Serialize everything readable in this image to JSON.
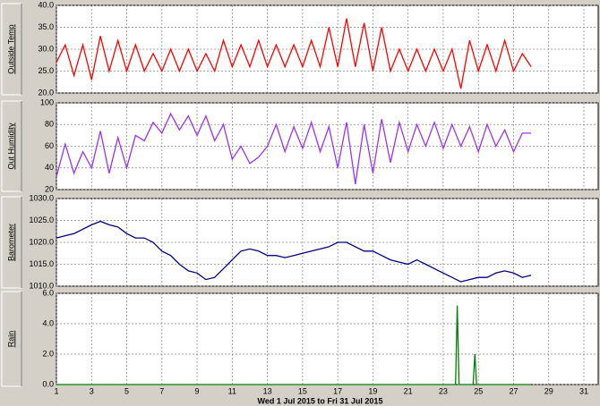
{
  "chart_data": [
    {
      "type": "line",
      "ylabel": "Outside Temp",
      "xlim": [
        1,
        31
      ],
      "xticks": [
        1,
        3,
        5,
        7,
        9,
        11,
        13,
        15,
        17,
        19,
        21,
        23,
        25,
        27,
        29,
        31
      ],
      "ylim": [
        20,
        40
      ],
      "yticks": [
        {
          "value": 20,
          "label": "20.0"
        },
        {
          "value": 25,
          "label": "25.0"
        },
        {
          "value": 30,
          "label": "30.0"
        },
        {
          "value": 35,
          "label": "35.0"
        },
        {
          "value": 40,
          "label": "40.0"
        }
      ],
      "grid": true,
      "x": [
        1,
        1.5,
        2,
        2.5,
        3,
        3.5,
        4,
        4.5,
        5,
        5.5,
        6,
        6.5,
        7,
        7.5,
        8,
        8.5,
        9,
        9.5,
        10,
        10.5,
        11,
        11.5,
        12,
        12.5,
        13,
        13.5,
        14,
        14.5,
        15,
        15.5,
        16,
        16.5,
        17,
        17.5,
        18,
        18.5,
        19,
        19.5,
        20,
        20.5,
        21,
        21.5,
        22,
        22.5,
        23,
        23.5,
        24,
        24.5,
        25,
        25.5,
        26,
        26.5,
        27,
        27.5,
        28
      ],
      "series": [
        {
          "color": "#ff0000",
          "values": [
            27,
            31,
            24,
            31,
            23,
            33,
            25,
            32,
            25,
            31,
            25,
            29,
            25,
            30,
            25,
            30,
            25,
            29,
            25,
            32,
            26,
            31,
            26,
            32,
            26,
            31,
            26,
            31,
            26,
            32,
            26,
            35,
            26,
            37,
            26,
            36,
            25,
            35,
            25,
            30,
            25,
            30,
            25,
            30,
            25,
            30,
            21,
            32,
            25,
            31,
            25,
            32,
            25,
            29,
            26
          ]
        }
      ]
    },
    {
      "type": "line",
      "ylabel": "Out Humidity",
      "xlim": [
        1,
        31
      ],
      "xticks": [
        1,
        3,
        5,
        7,
        9,
        11,
        13,
        15,
        17,
        19,
        21,
        23,
        25,
        27,
        29,
        31
      ],
      "ylim": [
        20,
        100
      ],
      "yticks": [
        20,
        40,
        60,
        80,
        100
      ],
      "grid": true,
      "x": [
        1,
        1.5,
        2,
        2.5,
        3,
        3.5,
        4,
        4.5,
        5,
        5.5,
        6,
        6.5,
        7,
        7.5,
        8,
        8.5,
        9,
        9.5,
        10,
        10.5,
        11,
        11.5,
        12,
        12.5,
        13,
        13.5,
        14,
        14.5,
        15,
        15.5,
        16,
        16.5,
        17,
        17.5,
        18,
        18.5,
        19,
        19.5,
        20,
        20.5,
        21,
        21.5,
        22,
        22.5,
        23,
        23.5,
        24,
        24.5,
        25,
        25.5,
        26,
        26.5,
        27,
        27.5,
        28
      ],
      "series": [
        {
          "color": "#9933ff",
          "values": [
            32,
            62,
            35,
            55,
            40,
            74,
            35,
            68,
            40,
            70,
            65,
            82,
            72,
            90,
            75,
            88,
            70,
            88,
            65,
            80,
            48,
            60,
            44,
            50,
            60,
            80,
            55,
            78,
            58,
            82,
            55,
            78,
            40,
            82,
            25,
            80,
            35,
            85,
            45,
            82,
            55,
            80,
            60,
            82,
            58,
            80,
            60,
            78,
            55,
            80,
            60,
            75,
            55,
            72,
            72
          ]
        }
      ]
    },
    {
      "type": "line",
      "ylabel": "Barometer",
      "xlim": [
        1,
        31
      ],
      "xticks": [
        1,
        3,
        5,
        7,
        9,
        11,
        13,
        15,
        17,
        19,
        21,
        23,
        25,
        27,
        29,
        31
      ],
      "ylim": [
        1010,
        1030
      ],
      "yticks": [
        {
          "value": 1010,
          "label": "1010.0"
        },
        {
          "value": 1015,
          "label": "1015.0"
        },
        {
          "value": 1020,
          "label": "1020.0"
        },
        {
          "value": 1025,
          "label": "1025.0"
        },
        {
          "value": 1030,
          "label": "1030.0"
        }
      ],
      "grid": true,
      "x": [
        1,
        1.5,
        2,
        2.5,
        3,
        3.5,
        4,
        4.5,
        5,
        5.5,
        6,
        6.5,
        7,
        7.5,
        8,
        8.5,
        9,
        9.5,
        10,
        10.5,
        11,
        11.5,
        12,
        12.5,
        13,
        13.5,
        14,
        14.5,
        15,
        15.5,
        16,
        16.5,
        17,
        17.5,
        18,
        18.5,
        19,
        19.5,
        20,
        20.5,
        21,
        21.5,
        22,
        22.5,
        23,
        23.5,
        24,
        24.5,
        25,
        25.5,
        26,
        26.5,
        27,
        27.5,
        28
      ],
      "series": [
        {
          "color": "#000080",
          "values": [
            1021,
            1021.5,
            1022,
            1023,
            1024,
            1024.8,
            1024,
            1023.5,
            1022,
            1021,
            1021,
            1020,
            1018,
            1017,
            1015,
            1013.5,
            1013,
            1011.5,
            1012,
            1014,
            1016,
            1018,
            1018.5,
            1018,
            1017,
            1017,
            1016.5,
            1017,
            1017.5,
            1018,
            1018.5,
            1019,
            1020,
            1020,
            1019,
            1018,
            1018,
            1017,
            1016,
            1015.5,
            1015,
            1016,
            1015,
            1014,
            1013,
            1012,
            1011,
            1011.5,
            1012,
            1012,
            1013,
            1013.5,
            1013,
            1012,
            1012.5
          ]
        }
      ]
    },
    {
      "type": "line",
      "ylabel": "Rain",
      "xlabel": "Wed 1 Jul 2015  to  Fri 31 Jul 2015",
      "xlim": [
        1,
        31
      ],
      "xticks": [
        1,
        3,
        5,
        7,
        9,
        11,
        13,
        15,
        17,
        19,
        21,
        23,
        25,
        27,
        29,
        31
      ],
      "ylim": [
        0,
        6
      ],
      "yticks": [
        {
          "value": 0,
          "label": "0.0"
        },
        {
          "value": 2,
          "label": "2.0"
        },
        {
          "value": 4,
          "label": "4.0"
        },
        {
          "value": 6,
          "label": "6.0"
        }
      ],
      "grid": true,
      "x": [
        1,
        23.7,
        23.8,
        23.9,
        24.7,
        24.8,
        24.9,
        28
      ],
      "series": [
        {
          "color": "#008000",
          "values": [
            0,
            0,
            5.2,
            0,
            0,
            2,
            0,
            0
          ]
        }
      ]
    }
  ]
}
